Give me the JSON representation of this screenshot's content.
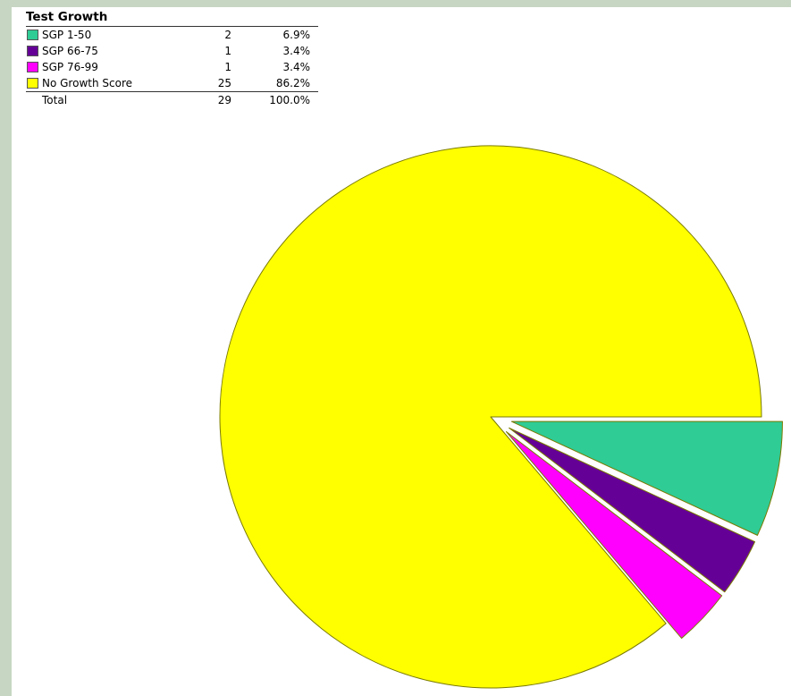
{
  "chart_data": {
    "type": "pie",
    "title": "Test Growth",
    "slices": [
      {
        "label": "SGP 1-50",
        "count": "2",
        "percent": "6.9%",
        "value": 2,
        "color": "#2fcc95",
        "exploded": true
      },
      {
        "label": "SGP 66-75",
        "count": "1",
        "percent": "3.4%",
        "value": 1,
        "color": "#650096",
        "exploded": true
      },
      {
        "label": "SGP 76-99",
        "count": "1",
        "percent": "3.4%",
        "value": 1,
        "color": "#ff00ff",
        "exploded": true
      },
      {
        "label": "No Growth Score",
        "count": "25",
        "percent": "86.2%",
        "value": 25,
        "color": "#ffff00",
        "exploded": false
      }
    ],
    "total": {
      "label": "Total",
      "count": "29",
      "percent": "100.0%"
    },
    "legend_position": "top-left"
  }
}
